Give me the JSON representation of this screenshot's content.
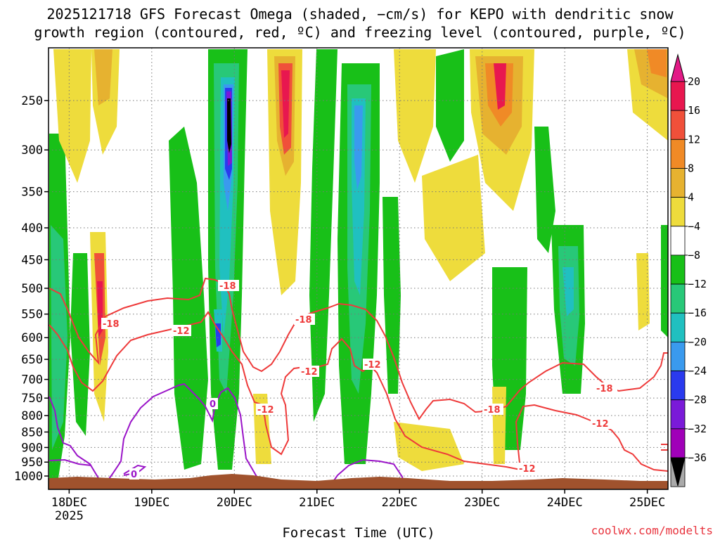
{
  "chart_data": {
    "type": "heatmap",
    "title_line1": "2025121718 GFS Forecast Omega (shaded, −cm/s) for KEPO with dendritic snow",
    "title_line2": "growth region (contoured, red, ºC) and freezing level (contoured, purple, ºC)",
    "xlabel": "Forecast Time (UTC)",
    "ylabel": "",
    "x_ticks": [
      {
        "label": "18DEC",
        "sub": "2025",
        "t": 0.5
      },
      {
        "label": "19DEC",
        "sub": "",
        "t": 1.5
      },
      {
        "label": "20DEC",
        "sub": "",
        "t": 2.5
      },
      {
        "label": "21DEC",
        "sub": "",
        "t": 3.5
      },
      {
        "label": "22DEC",
        "sub": "",
        "t": 4.5
      },
      {
        "label": "23DEC",
        "sub": "",
        "t": 5.5
      },
      {
        "label": "24DEC",
        "sub": "",
        "t": 6.5
      },
      {
        "label": "25DEC",
        "sub": "",
        "t": 7.5
      }
    ],
    "x_range_days": [
      0.25,
      7.75
    ],
    "y_ticks": [
      "250",
      "300",
      "350",
      "400",
      "450",
      "500",
      "550",
      "600",
      "650",
      "700",
      "750",
      "800",
      "850",
      "900",
      "950",
      "1000"
    ],
    "y_tick_values": [
      250,
      300,
      350,
      400,
      450,
      500,
      550,
      600,
      650,
      700,
      750,
      800,
      850,
      900,
      950,
      1000
    ],
    "y_range_hpa": [
      200,
      1015
    ],
    "colorbar": {
      "labels": [
        "20",
        "16",
        "12",
        "8",
        "4",
        "−4",
        "−8",
        "−12",
        "−16",
        "−20",
        "−24",
        "−28",
        "−32",
        "−36"
      ],
      "colors": [
        "#e8174f",
        "#f0503a",
        "#f08a26",
        "#e6b230",
        "#eedc3c",
        "#ffffff",
        "#18c018",
        "#28c878",
        "#20c0c0",
        "#3a9aee",
        "#2a3aee",
        "#7a1ad8",
        "#a000b8",
        "#aaaaaa",
        "#000000"
      ],
      "top_color": "#e21a86"
    },
    "contour_labels": {
      "red": [
        "-18",
        "-12",
        "-18",
        "-12",
        "-18",
        "-12",
        "-12",
        "-18",
        "-12",
        "-12",
        "-18"
      ],
      "purple": [
        "0",
        "0"
      ]
    },
    "credit": "coolwx.com/modelts",
    "colors": {
      "red_contour": "#ee3a3a",
      "purple_contour": "#9a14c8",
      "ground": "#a0522d",
      "grid": "#777777"
    }
  }
}
